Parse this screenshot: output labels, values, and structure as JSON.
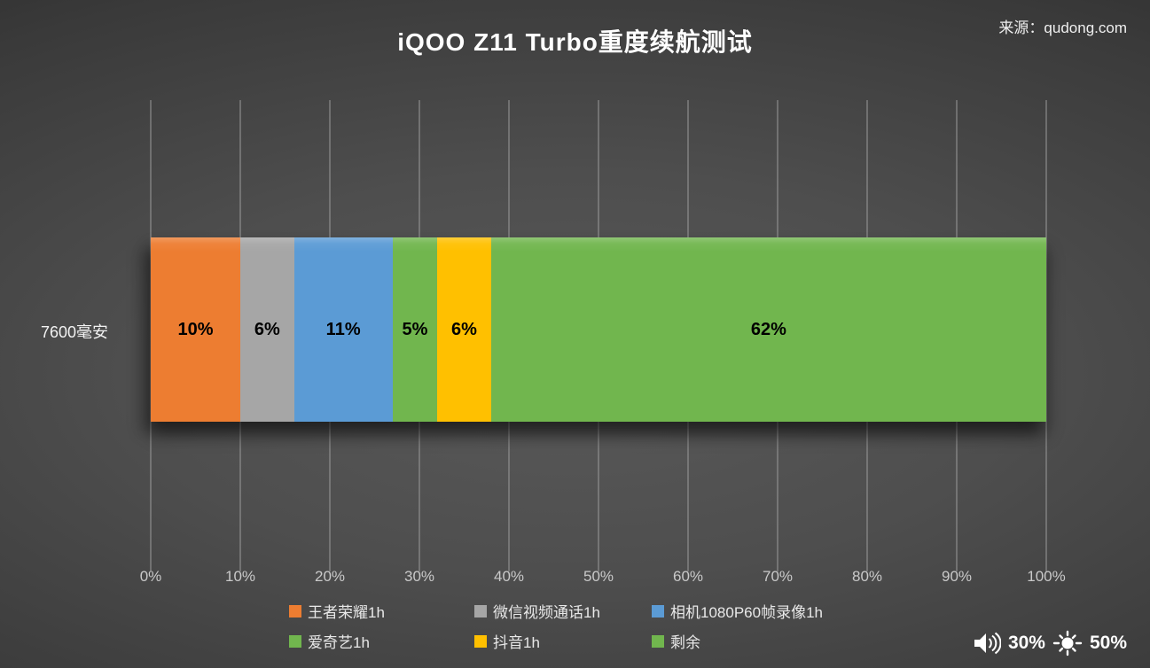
{
  "title": "iQOO Z11 Turbo重度续航测试",
  "source": {
    "label": "来源：qudong.com"
  },
  "chart_data": {
    "type": "bar",
    "orientation": "horizontal-stacked",
    "title": "iQOO Z11 Turbo重度续航测试",
    "categories": [
      "7600毫安"
    ],
    "series": [
      {
        "name": "王者荣耀1h",
        "value": 10,
        "label": "10%",
        "color": "#ED7D31"
      },
      {
        "name": "微信视频通话1h",
        "value": 6,
        "label": "6%",
        "color": "#A6A6A6"
      },
      {
        "name": "相机1080P60帧录像1h",
        "value": 11,
        "label": "11%",
        "color": "#5B9BD5"
      },
      {
        "name": "爱奇艺1h",
        "value": 5,
        "label": "5%",
        "color": "#71B64E"
      },
      {
        "name": "抖音1h",
        "value": 6,
        "label": "6%",
        "color": "#FFC000"
      },
      {
        "name": "剩余",
        "value": 62,
        "label": "62%",
        "color": "#71B64E"
      }
    ],
    "x_ticks": [
      "0%",
      "10%",
      "20%",
      "30%",
      "40%",
      "50%",
      "60%",
      "70%",
      "80%",
      "90%",
      "100%"
    ],
    "xlim": [
      0,
      100
    ],
    "grid": true,
    "legend_position": "bottom"
  },
  "status_bar": {
    "volume": "30%",
    "brightness": "50%"
  }
}
